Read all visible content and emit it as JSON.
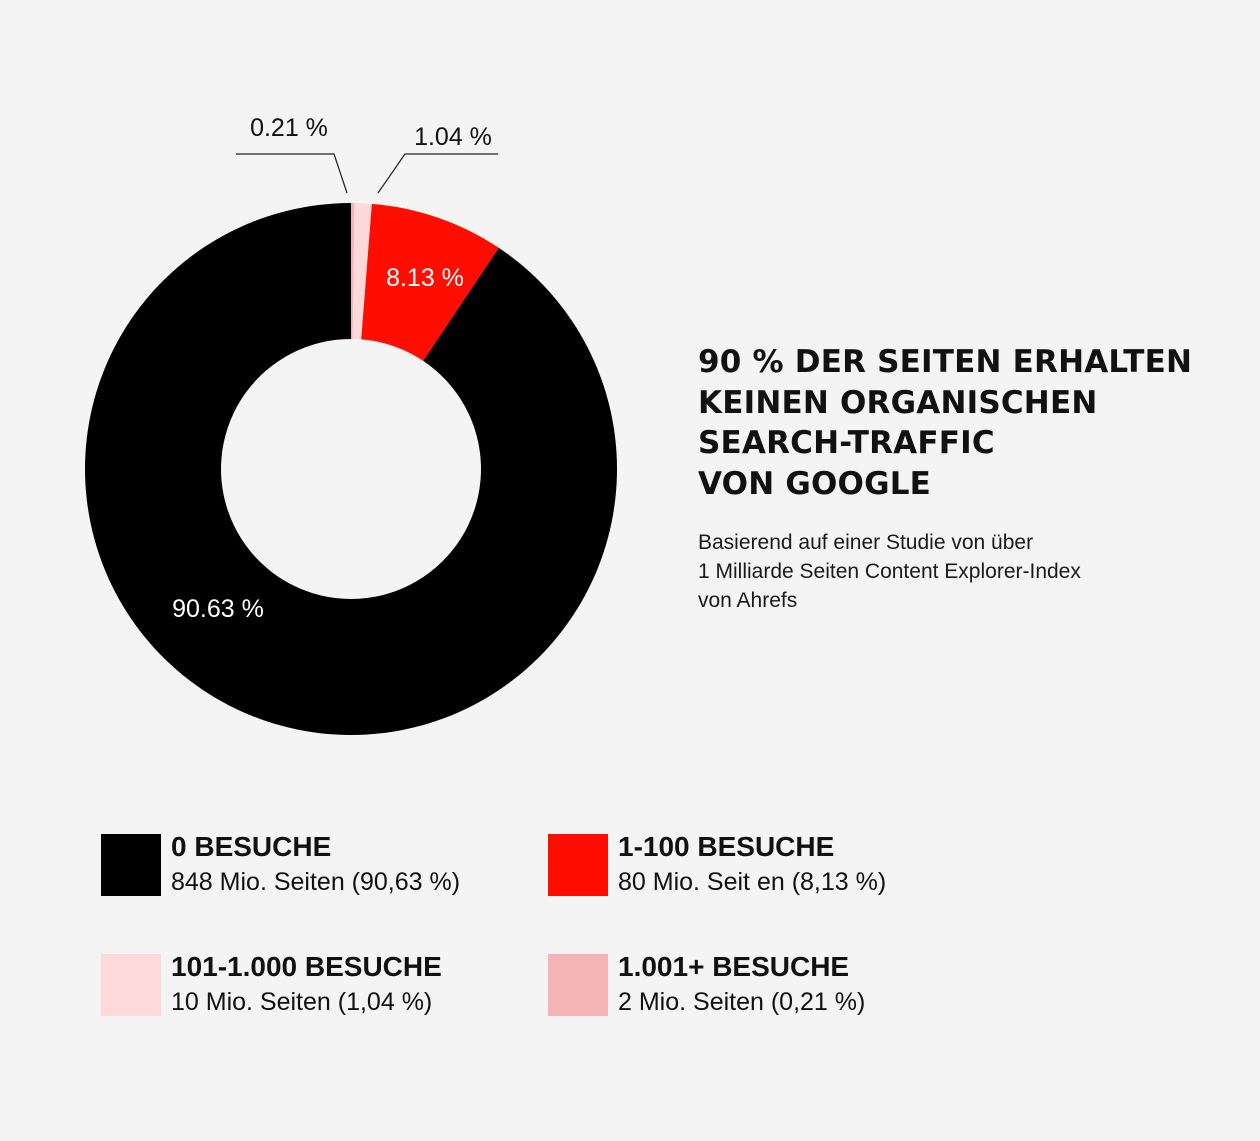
{
  "title_lines": [
    "90 % DER SEITEN ERHALTEN",
    "KEINEN ORGANISCHEN",
    "SEARCH-TRAFFIC",
    "VON GOOGLE"
  ],
  "subtitle_lines": [
    "Basierend auf einer Studie von über",
    "1 Milliarde Seiten Content Explorer-Index",
    "von Ahrefs"
  ],
  "chart_data": {
    "type": "pie",
    "style": "donut",
    "slices": [
      {
        "label": "1.001+ BESUCHE",
        "value": 0.21,
        "value_label": "0.21 %",
        "color": "#f2b4b4",
        "label_style": "callout-outside"
      },
      {
        "label": "101-1.000 BESUCHE",
        "value": 1.04,
        "value_label": "1.04 %",
        "color": "#fdd9d9",
        "label_style": "callout-outside"
      },
      {
        "label": "1-100 BESUCHE",
        "value": 8.13,
        "value_label": "8.13 %",
        "color": "#ff0d00",
        "label_style": "inside"
      },
      {
        "label": "0 BESUCHE",
        "value": 90.63,
        "value_label": "90.63 %",
        "color": "#000000",
        "label_style": "inside"
      }
    ],
    "start": "12 o'clock",
    "direction": "clockwise",
    "legend_position": "bottom"
  },
  "legend": [
    {
      "title": "0 BESUCHE",
      "sub": "848 Mio. Seiten (90,63 %)",
      "color": "#000000"
    },
    {
      "title": "1-100 BESUCHE",
      "sub": "80 Mio. Seit  en (8,13 %)",
      "color": "#ff0d00"
    },
    {
      "title": "101-1.000 BESUCHE",
      "sub": "10 Mio. Seiten (1,04 %)",
      "color": "#fdd9d9"
    },
    {
      "title": "1.001+ BESUCHE",
      "sub": "2 Mio. Seiten (0,21 %)",
      "color": "#f2b4b4"
    }
  ]
}
